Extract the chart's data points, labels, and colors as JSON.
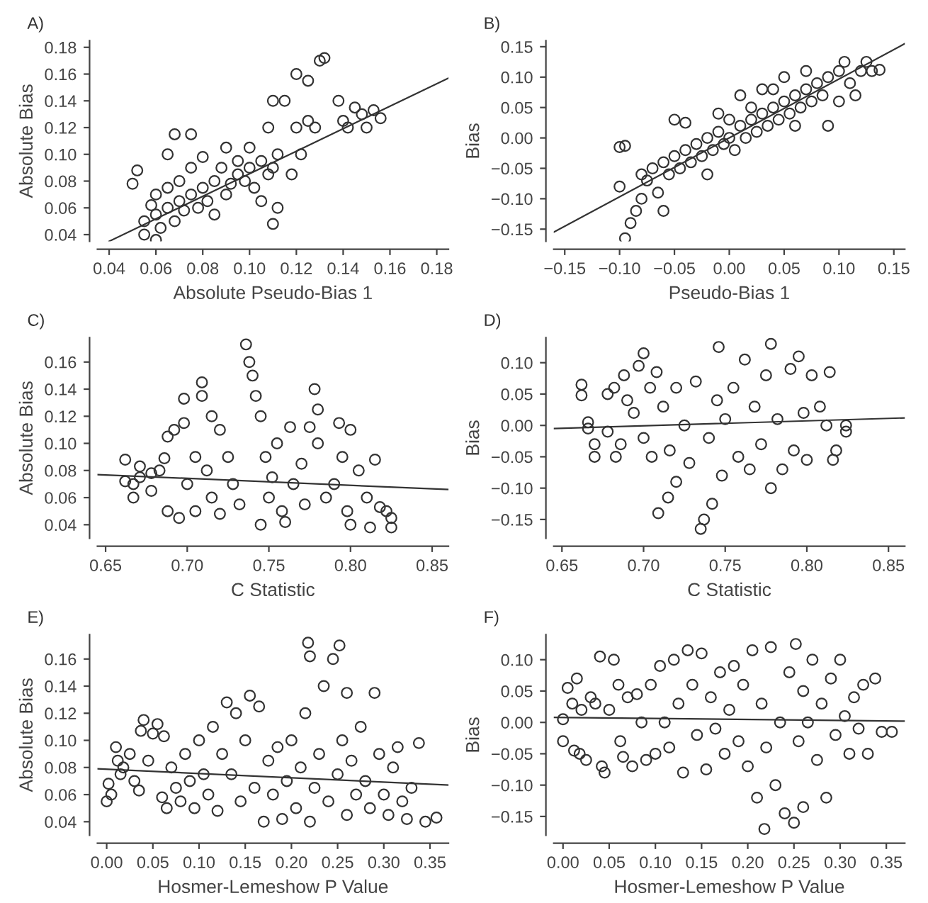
{
  "chart_data": [
    {
      "type": "scatter",
      "title": "A)",
      "xlabel": "Absolute Pseudo-Bias 1",
      "ylabel": "Absolute Bias",
      "marker": "circle",
      "xlim": [
        0.035,
        0.185
      ],
      "ylim": [
        0.035,
        0.185
      ],
      "xticks": [
        {
          "value": 0.04,
          "label": "0.04"
        },
        {
          "value": 0.06,
          "label": "0.06"
        },
        {
          "value": 0.08,
          "label": "0.08"
        },
        {
          "value": 0.1,
          "label": "0.10"
        },
        {
          "value": 0.12,
          "label": "0.12"
        },
        {
          "value": 0.14,
          "label": "0.14"
        },
        {
          "value": 0.16,
          "label": "0.16"
        },
        {
          "value": 0.18,
          "label": "0.18"
        }
      ],
      "yticks": [
        {
          "value": 0.04,
          "label": "0.04"
        },
        {
          "value": 0.06,
          "label": "0.06"
        },
        {
          "value": 0.08,
          "label": "0.08"
        },
        {
          "value": 0.1,
          "label": "0.10"
        },
        {
          "value": 0.12,
          "label": "0.12"
        },
        {
          "value": 0.14,
          "label": "0.14"
        },
        {
          "value": 0.16,
          "label": "0.16"
        },
        {
          "value": 0.18,
          "label": "0.18"
        }
      ],
      "series": [
        {
          "type": "scatter",
          "color": "#333333",
          "x": [
            0.05,
            0.052,
            0.055,
            0.055,
            0.058,
            0.06,
            0.06,
            0.062,
            0.065,
            0.065,
            0.068,
            0.07,
            0.07,
            0.072,
            0.075,
            0.075,
            0.078,
            0.08,
            0.08,
            0.082,
            0.085,
            0.085,
            0.088,
            0.09,
            0.09,
            0.092,
            0.095,
            0.095,
            0.098,
            0.1,
            0.1,
            0.102,
            0.105,
            0.105,
            0.108,
            0.11,
            0.11,
            0.112,
            0.115,
            0.118,
            0.12,
            0.12,
            0.122,
            0.125,
            0.125,
            0.128,
            0.13,
            0.132,
            0.11,
            0.112,
            0.138,
            0.14,
            0.142,
            0.145,
            0.148,
            0.15,
            0.153,
            0.156,
            0.06,
            0.068,
            0.075,
            0.108,
            0.065
          ],
          "values": [
            0.078,
            0.088,
            0.05,
            0.04,
            0.062,
            0.055,
            0.07,
            0.045,
            0.06,
            0.075,
            0.05,
            0.065,
            0.08,
            0.058,
            0.07,
            0.09,
            0.06,
            0.075,
            0.098,
            0.065,
            0.08,
            0.055,
            0.09,
            0.07,
            0.105,
            0.078,
            0.085,
            0.095,
            0.08,
            0.09,
            0.105,
            0.075,
            0.095,
            0.065,
            0.085,
            0.09,
            0.048,
            0.1,
            0.14,
            0.085,
            0.12,
            0.16,
            0.1,
            0.125,
            0.155,
            0.12,
            0.17,
            0.172,
            0.14,
            0.06,
            0.14,
            0.125,
            0.12,
            0.135,
            0.13,
            0.12,
            0.133,
            0.127,
            0.036,
            0.115,
            0.115,
            0.12,
            0.1
          ]
        },
        {
          "type": "line",
          "marker": "none",
          "color": "#333333",
          "x": [
            0.04,
            0.185
          ],
          "values": [
            0.035,
            0.157
          ]
        }
      ]
    },
    {
      "type": "scatter",
      "title": "B)",
      "xlabel": "Pseudo-Bias 1",
      "ylabel": "Bias",
      "marker": "circle",
      "xlim": [
        -0.16,
        0.16
      ],
      "ylim": [
        -0.17,
        0.16
      ],
      "xticks": [
        {
          "value": -0.15,
          "label": "−0.15"
        },
        {
          "value": -0.1,
          "label": "−0.10"
        },
        {
          "value": -0.05,
          "label": "−0.05"
        },
        {
          "value": 0,
          "label": "0.00"
        },
        {
          "value": 0.05,
          "label": "0.05"
        },
        {
          "value": 0.1,
          "label": "0.10"
        },
        {
          "value": 0.15,
          "label": "0.15"
        }
      ],
      "yticks": [
        {
          "value": -0.15,
          "label": "−0.15"
        },
        {
          "value": -0.1,
          "label": "−0.10"
        },
        {
          "value": -0.05,
          "label": "−0.05"
        },
        {
          "value": 0,
          "label": "0.00"
        },
        {
          "value": 0.05,
          "label": "0.05"
        },
        {
          "value": 0.1,
          "label": "0.10"
        },
        {
          "value": 0.15,
          "label": "0.15"
        }
      ],
      "series": [
        {
          "type": "scatter",
          "color": "#333333",
          "x": [
            -0.1,
            -0.095,
            -0.1,
            -0.095,
            -0.09,
            -0.085,
            -0.08,
            -0.08,
            -0.075,
            -0.07,
            -0.065,
            -0.06,
            -0.06,
            -0.055,
            -0.05,
            -0.05,
            -0.045,
            -0.04,
            -0.04,
            -0.035,
            -0.03,
            -0.025,
            -0.02,
            -0.02,
            -0.015,
            -0.01,
            -0.01,
            -0.005,
            0.0,
            0.0,
            0.005,
            0.01,
            0.01,
            0.015,
            0.02,
            0.02,
            0.025,
            0.03,
            0.03,
            0.035,
            0.04,
            0.04,
            0.045,
            0.05,
            0.05,
            0.055,
            0.06,
            0.06,
            0.065,
            0.07,
            0.07,
            0.075,
            0.08,
            0.085,
            0.09,
            0.09,
            0.1,
            0.1,
            0.105,
            0.11,
            0.115,
            0.12,
            0.125,
            0.13,
            0.137
          ],
          "values": [
            -0.015,
            -0.013,
            -0.08,
            -0.165,
            -0.14,
            -0.12,
            -0.1,
            -0.06,
            -0.07,
            -0.05,
            -0.09,
            -0.12,
            -0.04,
            -0.06,
            -0.03,
            0.03,
            -0.05,
            -0.02,
            0.025,
            -0.04,
            -0.01,
            -0.03,
            0.0,
            -0.06,
            -0.02,
            0.01,
            0.04,
            -0.01,
            0.0,
            0.03,
            -0.02,
            0.02,
            0.07,
            0.0,
            0.03,
            0.05,
            0.01,
            0.04,
            0.08,
            0.02,
            0.05,
            0.08,
            0.03,
            0.06,
            0.1,
            0.04,
            0.07,
            0.02,
            0.05,
            0.08,
            0.11,
            0.06,
            0.09,
            0.07,
            0.02,
            0.1,
            0.11,
            0.06,
            0.125,
            0.09,
            0.07,
            0.11,
            0.125,
            0.11,
            0.112
          ]
        },
        {
          "type": "line",
          "marker": "none",
          "color": "#333333",
          "x": [
            -0.16,
            0.16
          ],
          "values": [
            -0.155,
            0.155
          ]
        }
      ]
    },
    {
      "type": "scatter",
      "title": "C)",
      "xlabel": "C Statistic",
      "ylabel": "Absolute Bias",
      "marker": "circle",
      "xlim": [
        0.645,
        0.86
      ],
      "ylim": [
        0.03,
        0.178
      ],
      "xticks": [
        {
          "value": 0.65,
          "label": "0.65"
        },
        {
          "value": 0.7,
          "label": "0.70"
        },
        {
          "value": 0.75,
          "label": "0.75"
        },
        {
          "value": 0.8,
          "label": "0.80"
        },
        {
          "value": 0.85,
          "label": "0.85"
        }
      ],
      "yticks": [
        {
          "value": 0.04,
          "label": "0.04"
        },
        {
          "value": 0.06,
          "label": "0.06"
        },
        {
          "value": 0.08,
          "label": "0.08"
        },
        {
          "value": 0.1,
          "label": "0.10"
        },
        {
          "value": 0.12,
          "label": "0.12"
        },
        {
          "value": 0.14,
          "label": "0.14"
        },
        {
          "value": 0.16,
          "label": "0.16"
        }
      ],
      "series": [
        {
          "type": "scatter",
          "color": "#333333",
          "x": [
            0.662,
            0.662,
            0.667,
            0.667,
            0.671,
            0.671,
            0.678,
            0.678,
            0.683,
            0.686,
            0.688,
            0.688,
            0.692,
            0.695,
            0.698,
            0.698,
            0.7,
            0.705,
            0.705,
            0.709,
            0.709,
            0.712,
            0.715,
            0.715,
            0.72,
            0.72,
            0.725,
            0.728,
            0.732,
            0.736,
            0.738,
            0.74,
            0.742,
            0.745,
            0.745,
            0.748,
            0.75,
            0.752,
            0.755,
            0.758,
            0.76,
            0.763,
            0.765,
            0.77,
            0.772,
            0.775,
            0.778,
            0.78,
            0.78,
            0.785,
            0.79,
            0.793,
            0.795,
            0.798,
            0.8,
            0.8,
            0.805,
            0.81,
            0.812,
            0.815,
            0.818,
            0.822,
            0.825,
            0.825
          ],
          "values": [
            0.088,
            0.072,
            0.06,
            0.07,
            0.083,
            0.075,
            0.065,
            0.078,
            0.08,
            0.089,
            0.105,
            0.05,
            0.11,
            0.045,
            0.133,
            0.115,
            0.07,
            0.09,
            0.05,
            0.145,
            0.135,
            0.08,
            0.12,
            0.06,
            0.11,
            0.048,
            0.09,
            0.07,
            0.055,
            0.173,
            0.16,
            0.15,
            0.135,
            0.12,
            0.04,
            0.09,
            0.06,
            0.075,
            0.1,
            0.05,
            0.042,
            0.112,
            0.07,
            0.085,
            0.055,
            0.112,
            0.14,
            0.125,
            0.1,
            0.06,
            0.07,
            0.115,
            0.09,
            0.05,
            0.11,
            0.04,
            0.08,
            0.06,
            0.038,
            0.088,
            0.053,
            0.05,
            0.045,
            0.038
          ]
        },
        {
          "type": "line",
          "marker": "none",
          "color": "#333333",
          "x": [
            0.645,
            0.86
          ],
          "values": [
            0.077,
            0.066
          ]
        }
      ]
    },
    {
      "type": "scatter",
      "title": "D)",
      "xlabel": "C Statistic",
      "ylabel": "Bias",
      "marker": "circle",
      "xlim": [
        0.645,
        0.86
      ],
      "ylim": [
        -0.18,
        0.14
      ],
      "xticks": [
        {
          "value": 0.65,
          "label": "0.65"
        },
        {
          "value": 0.7,
          "label": "0.70"
        },
        {
          "value": 0.75,
          "label": "0.75"
        },
        {
          "value": 0.8,
          "label": "0.80"
        },
        {
          "value": 0.85,
          "label": "0.85"
        }
      ],
      "yticks": [
        {
          "value": -0.15,
          "label": "−0.15"
        },
        {
          "value": -0.1,
          "label": "−0.10"
        },
        {
          "value": -0.05,
          "label": "−0.05"
        },
        {
          "value": 0,
          "label": "0.00"
        },
        {
          "value": 0.05,
          "label": "0.05"
        },
        {
          "value": 0.1,
          "label": "0.10"
        }
      ],
      "series": [
        {
          "type": "scatter",
          "color": "#333333",
          "x": [
            0.662,
            0.662,
            0.666,
            0.666,
            0.67,
            0.67,
            0.678,
            0.678,
            0.682,
            0.683,
            0.686,
            0.688,
            0.69,
            0.694,
            0.697,
            0.7,
            0.7,
            0.704,
            0.705,
            0.708,
            0.709,
            0.712,
            0.715,
            0.716,
            0.72,
            0.72,
            0.725,
            0.728,
            0.732,
            0.735,
            0.737,
            0.74,
            0.742,
            0.745,
            0.746,
            0.748,
            0.75,
            0.755,
            0.758,
            0.762,
            0.765,
            0.768,
            0.772,
            0.775,
            0.778,
            0.778,
            0.782,
            0.785,
            0.79,
            0.792,
            0.795,
            0.798,
            0.8,
            0.803,
            0.808,
            0.812,
            0.814,
            0.816,
            0.818,
            0.824,
            0.824
          ],
          "values": [
            0.065,
            0.048,
            0.005,
            -0.005,
            -0.03,
            -0.05,
            -0.01,
            0.05,
            0.06,
            -0.05,
            -0.03,
            0.08,
            0.04,
            0.02,
            0.095,
            0.115,
            -0.02,
            0.06,
            -0.05,
            0.085,
            -0.14,
            0.03,
            -0.115,
            -0.04,
            0.06,
            -0.09,
            0.0,
            -0.06,
            0.07,
            -0.165,
            -0.15,
            -0.02,
            -0.125,
            0.04,
            0.125,
            -0.08,
            0.01,
            0.06,
            -0.05,
            0.105,
            -0.07,
            0.03,
            -0.03,
            0.08,
            0.13,
            -0.1,
            0.01,
            -0.07,
            0.09,
            -0.04,
            0.11,
            0.02,
            -0.055,
            0.08,
            0.03,
            0.0,
            0.085,
            -0.055,
            -0.04,
            -0.01,
            0.0
          ]
        },
        {
          "type": "line",
          "marker": "none",
          "color": "#333333",
          "x": [
            0.645,
            0.86
          ],
          "values": [
            -0.005,
            0.012
          ]
        }
      ]
    },
    {
      "type": "scatter",
      "title": "E)",
      "xlabel": "Hosmer-Lemeshow P Value",
      "ylabel": "Absolute Bias",
      "marker": "circle",
      "xlim": [
        -0.01,
        0.37
      ],
      "ylim": [
        0.03,
        0.178
      ],
      "xticks": [
        {
          "value": 0,
          "label": "0.00"
        },
        {
          "value": 0.05,
          "label": "0.05"
        },
        {
          "value": 0.1,
          "label": "0.10"
        },
        {
          "value": 0.15,
          "label": "0.15"
        },
        {
          "value": 0.2,
          "label": "0.20"
        },
        {
          "value": 0.25,
          "label": "0.25"
        },
        {
          "value": 0.3,
          "label": "0.30"
        },
        {
          "value": 0.35,
          "label": "0.35"
        }
      ],
      "yticks": [
        {
          "value": 0.04,
          "label": "0.04"
        },
        {
          "value": 0.06,
          "label": "0.06"
        },
        {
          "value": 0.08,
          "label": "0.08"
        },
        {
          "value": 0.1,
          "label": "0.10"
        },
        {
          "value": 0.12,
          "label": "0.12"
        },
        {
          "value": 0.14,
          "label": "0.14"
        },
        {
          "value": 0.16,
          "label": "0.16"
        }
      ],
      "series": [
        {
          "type": "scatter",
          "color": "#333333",
          "x": [
            0.0,
            0.002,
            0.005,
            0.01,
            0.012,
            0.015,
            0.018,
            0.025,
            0.03,
            0.035,
            0.04,
            0.037,
            0.045,
            0.05,
            0.055,
            0.06,
            0.062,
            0.065,
            0.07,
            0.075,
            0.08,
            0.085,
            0.09,
            0.095,
            0.1,
            0.105,
            0.11,
            0.115,
            0.12,
            0.125,
            0.13,
            0.135,
            0.14,
            0.145,
            0.15,
            0.155,
            0.16,
            0.165,
            0.17,
            0.175,
            0.18,
            0.185,
            0.19,
            0.195,
            0.2,
            0.205,
            0.21,
            0.215,
            0.218,
            0.22,
            0.22,
            0.225,
            0.23,
            0.235,
            0.24,
            0.245,
            0.25,
            0.252,
            0.255,
            0.26,
            0.26,
            0.265,
            0.27,
            0.275,
            0.28,
            0.285,
            0.29,
            0.295,
            0.3,
            0.305,
            0.31,
            0.315,
            0.32,
            0.325,
            0.33,
            0.338,
            0.345,
            0.357
          ],
          "values": [
            0.055,
            0.068,
            0.06,
            0.095,
            0.085,
            0.075,
            0.08,
            0.09,
            0.07,
            0.063,
            0.115,
            0.107,
            0.085,
            0.105,
            0.112,
            0.058,
            0.103,
            0.05,
            0.08,
            0.065,
            0.055,
            0.09,
            0.07,
            0.05,
            0.1,
            0.075,
            0.06,
            0.11,
            0.048,
            0.09,
            0.128,
            0.075,
            0.12,
            0.055,
            0.1,
            0.133,
            0.065,
            0.125,
            0.04,
            0.085,
            0.06,
            0.095,
            0.042,
            0.07,
            0.1,
            0.05,
            0.08,
            0.12,
            0.172,
            0.162,
            0.04,
            0.065,
            0.09,
            0.14,
            0.055,
            0.16,
            0.075,
            0.17,
            0.1,
            0.045,
            0.135,
            0.085,
            0.06,
            0.11,
            0.07,
            0.05,
            0.135,
            0.09,
            0.06,
            0.045,
            0.08,
            0.095,
            0.055,
            0.042,
            0.065,
            0.098,
            0.04,
            0.043
          ]
        },
        {
          "type": "line",
          "marker": "none",
          "color": "#333333",
          "x": [
            -0.01,
            0.37
          ],
          "values": [
            0.079,
            0.067
          ]
        }
      ]
    },
    {
      "type": "scatter",
      "title": "F)",
      "xlabel": "Hosmer-Lemeshow P Value",
      "ylabel": "Bias",
      "marker": "circle",
      "xlim": [
        -0.01,
        0.37
      ],
      "ylim": [
        -0.18,
        0.14
      ],
      "xticks": [
        {
          "value": 0,
          "label": "0.00"
        },
        {
          "value": 0.05,
          "label": "0.05"
        },
        {
          "value": 0.1,
          "label": "0.10"
        },
        {
          "value": 0.15,
          "label": "0.15"
        },
        {
          "value": 0.2,
          "label": "0.20"
        },
        {
          "value": 0.25,
          "label": "0.25"
        },
        {
          "value": 0.3,
          "label": "0.30"
        },
        {
          "value": 0.35,
          "label": "0.35"
        }
      ],
      "yticks": [
        {
          "value": -0.15,
          "label": "−0.15"
        },
        {
          "value": -0.1,
          "label": "−0.10"
        },
        {
          "value": -0.05,
          "label": "−0.05"
        },
        {
          "value": 0,
          "label": "0.00"
        },
        {
          "value": 0.05,
          "label": "0.05"
        },
        {
          "value": 0.1,
          "label": "0.10"
        }
      ],
      "series": [
        {
          "type": "scatter",
          "color": "#333333",
          "x": [
            0.0,
            0.0,
            0.005,
            0.01,
            0.012,
            0.015,
            0.018,
            0.02,
            0.025,
            0.03,
            0.035,
            0.04,
            0.042,
            0.045,
            0.05,
            0.055,
            0.06,
            0.062,
            0.065,
            0.07,
            0.075,
            0.08,
            0.085,
            0.09,
            0.095,
            0.1,
            0.105,
            0.11,
            0.115,
            0.12,
            0.125,
            0.13,
            0.135,
            0.14,
            0.145,
            0.15,
            0.155,
            0.16,
            0.165,
            0.17,
            0.175,
            0.18,
            0.185,
            0.19,
            0.195,
            0.2,
            0.205,
            0.21,
            0.215,
            0.218,
            0.22,
            0.225,
            0.23,
            0.235,
            0.24,
            0.245,
            0.25,
            0.252,
            0.255,
            0.26,
            0.26,
            0.265,
            0.27,
            0.275,
            0.28,
            0.285,
            0.29,
            0.295,
            0.3,
            0.305,
            0.31,
            0.315,
            0.32,
            0.325,
            0.33,
            0.338,
            0.345,
            0.356
          ],
          "values": [
            0.005,
            -0.03,
            0.055,
            0.03,
            -0.045,
            0.07,
            -0.05,
            0.02,
            -0.06,
            0.04,
            0.03,
            0.105,
            -0.07,
            -0.08,
            0.02,
            0.1,
            0.06,
            -0.03,
            -0.055,
            0.04,
            -0.07,
            0.045,
            0.0,
            -0.06,
            0.06,
            -0.05,
            0.09,
            0.0,
            -0.04,
            0.1,
            0.03,
            -0.08,
            0.115,
            0.06,
            -0.02,
            0.11,
            -0.075,
            0.04,
            -0.01,
            0.08,
            -0.05,
            0.02,
            0.09,
            -0.03,
            0.06,
            -0.07,
            0.115,
            -0.12,
            0.03,
            -0.17,
            -0.04,
            0.12,
            -0.1,
            0.0,
            -0.145,
            0.08,
            -0.16,
            0.125,
            -0.03,
            0.05,
            -0.135,
            0.0,
            0.1,
            -0.06,
            0.03,
            -0.12,
            0.07,
            -0.02,
            0.1,
            0.01,
            -0.05,
            0.04,
            -0.01,
            0.06,
            -0.05,
            0.07,
            -0.015,
            -0.015
          ]
        },
        {
          "type": "line",
          "marker": "none",
          "color": "#333333",
          "x": [
            -0.01,
            0.37
          ],
          "values": [
            0.008,
            0.002
          ]
        }
      ]
    }
  ]
}
